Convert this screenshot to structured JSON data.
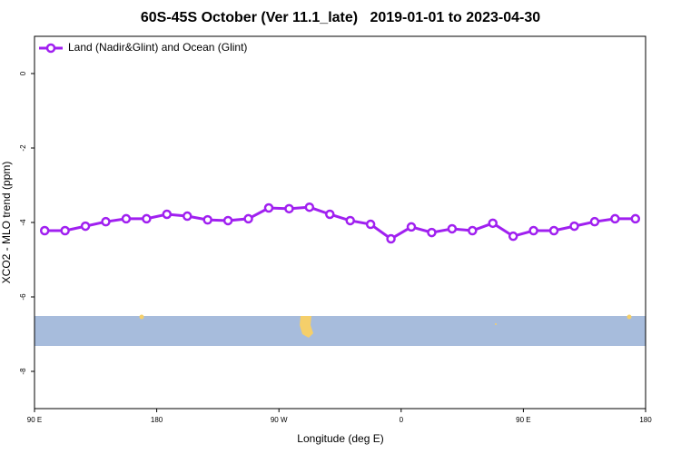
{
  "chart_data": {
    "type": "line",
    "title": "60S-45S October (Ver 11.1_late)   2019-01-01 to 2023-04-30",
    "xlabel": "Longitude (deg E)",
    "ylabel": "XCO2 - MLO trend (ppm)",
    "x": [
      97.5,
      112.5,
      127.5,
      142.5,
      157.5,
      172.5,
      187.5,
      202.5,
      217.5,
      232.5,
      247.5,
      262.5,
      277.5,
      292.5,
      307.5,
      322.5,
      337.5,
      352.5,
      367.5,
      382.5,
      397.5,
      412.5,
      427.5,
      442.5,
      457.5,
      472.5,
      487.5,
      502.5,
      517.5,
      532.5
    ],
    "series": [
      {
        "name": "Land (Nadir&Glint) and Ocean (Glint)",
        "color": "#a020f0",
        "values": [
          -4.22,
          -4.22,
          -4.1,
          -3.98,
          -3.9,
          -3.9,
          -3.78,
          -3.83,
          -3.93,
          -3.95,
          -3.9,
          -3.61,
          -3.63,
          -3.59,
          -3.78,
          -3.95,
          -4.05,
          -4.44,
          -4.12,
          -4.27,
          -4.17,
          -4.22,
          -4.02,
          -4.37,
          -4.22,
          -4.22,
          -4.1,
          -3.98,
          -3.9,
          -3.9
        ]
      }
    ],
    "xlim": [
      90,
      540
    ],
    "xticks": [
      {
        "value": 90,
        "label": "90 E"
      },
      {
        "value": 180,
        "label": "180"
      },
      {
        "value": 270,
        "label": "90 W"
      },
      {
        "value": 360,
        "label": "0"
      },
      {
        "value": 450,
        "label": "90 E"
      },
      {
        "value": 540,
        "label": "180"
      }
    ],
    "ylim": [
      -9,
      1
    ],
    "yticks": [
      0,
      -2,
      -4,
      -6,
      -8
    ],
    "legend": "top-left"
  }
}
